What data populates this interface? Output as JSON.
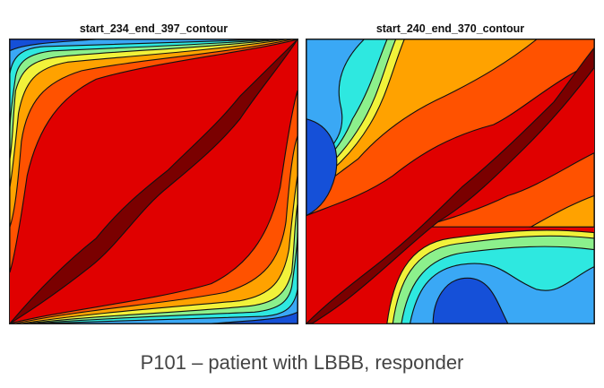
{
  "chart_data": [
    {
      "type": "contour",
      "title": "start_234_end_397_contour",
      "colormap": "jet",
      "colors": [
        "#1550d8",
        "#3aa8f5",
        "#2ee8e0",
        "#8cf08c",
        "#f2f23a",
        "#ffa200",
        "#ff5200",
        "#e00000",
        "#7a0000"
      ]
    },
    {
      "type": "contour",
      "title": "start_240_end_370_contour",
      "colormap": "jet",
      "colors": [
        "#1550d8",
        "#3aa8f5",
        "#2ee8e0",
        "#8cf08c",
        "#f2f23a",
        "#ffa200",
        "#ff5200",
        "#e00000",
        "#7a0000"
      ]
    }
  ],
  "caption": "P101 – patient with LBBB, responder"
}
